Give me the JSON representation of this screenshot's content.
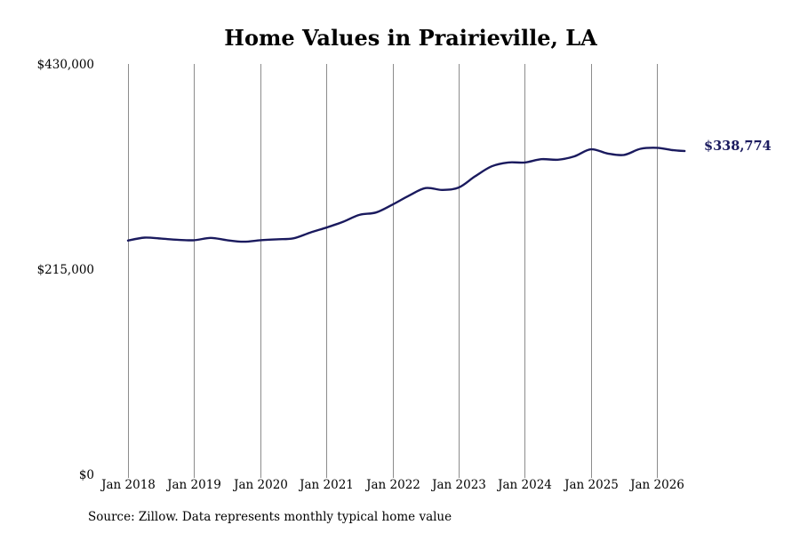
{
  "chart_data": {
    "type": "line",
    "title": "Home Values in Prairieville, LA",
    "xlabel": "",
    "ylabel": "",
    "ylim": [
      0,
      430000
    ],
    "y_ticks": [
      {
        "value": 0,
        "label": "$0"
      },
      {
        "value": 215000,
        "label": "$215,000"
      },
      {
        "value": 430000,
        "label": "$430,000"
      }
    ],
    "x_ticks": [
      {
        "value": "2018-01",
        "label": "Jan 2018"
      },
      {
        "value": "2019-01",
        "label": "Jan 2019"
      },
      {
        "value": "2020-01",
        "label": "Jan 2020"
      },
      {
        "value": "2021-01",
        "label": "Jan 2021"
      },
      {
        "value": "2022-01",
        "label": "Jan 2022"
      },
      {
        "value": "2023-01",
        "label": "Jan 2023"
      },
      {
        "value": "2024-01",
        "label": "Jan 2024"
      },
      {
        "value": "2025-01",
        "label": "Jan 2025"
      },
      {
        "value": "2026-01",
        "label": "Jan 2026"
      }
    ],
    "grid": "vertical",
    "series": [
      {
        "color": "#1a1a5e",
        "points": [
          {
            "x": "2018-01",
            "y": 245000
          },
          {
            "x": "2018-04",
            "y": 248000
          },
          {
            "x": "2018-07",
            "y": 247000
          },
          {
            "x": "2018-10",
            "y": 245800
          },
          {
            "x": "2019-01",
            "y": 245300
          },
          {
            "x": "2019-04",
            "y": 247800
          },
          {
            "x": "2019-07",
            "y": 245300
          },
          {
            "x": "2019-10",
            "y": 243800
          },
          {
            "x": "2020-01",
            "y": 245300
          },
          {
            "x": "2020-04",
            "y": 246300
          },
          {
            "x": "2020-07",
            "y": 247300
          },
          {
            "x": "2020-10",
            "y": 253200
          },
          {
            "x": "2021-01",
            "y": 258600
          },
          {
            "x": "2021-04",
            "y": 264500
          },
          {
            "x": "2021-07",
            "y": 271900
          },
          {
            "x": "2021-10",
            "y": 274400
          },
          {
            "x": "2022-01",
            "y": 282700
          },
          {
            "x": "2022-04",
            "y": 292100
          },
          {
            "x": "2022-07",
            "y": 300000
          },
          {
            "x": "2022-10",
            "y": 298000
          },
          {
            "x": "2023-01",
            "y": 300500
          },
          {
            "x": "2023-04",
            "y": 312400
          },
          {
            "x": "2023-07",
            "y": 322800
          },
          {
            "x": "2023-10",
            "y": 326800
          },
          {
            "x": "2024-01",
            "y": 326800
          },
          {
            "x": "2024-04",
            "y": 330200
          },
          {
            "x": "2024-07",
            "y": 329700
          },
          {
            "x": "2024-10",
            "y": 333200
          },
          {
            "x": "2025-01",
            "y": 340600
          },
          {
            "x": "2025-04",
            "y": 336200
          },
          {
            "x": "2025-07",
            "y": 334700
          },
          {
            "x": "2025-10",
            "y": 341100
          },
          {
            "x": "2026-01",
            "y": 342100
          },
          {
            "x": "2026-04",
            "y": 339600
          },
          {
            "x": "2026-06",
            "y": 338774
          }
        ]
      }
    ],
    "end_label": "$338,774",
    "source": "Source: Zillow. Data represents monthly typical home value"
  }
}
